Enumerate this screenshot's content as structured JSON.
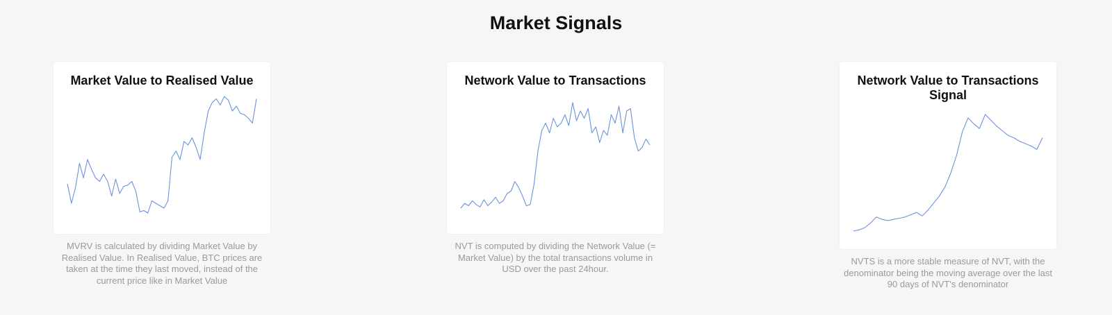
{
  "page": {
    "title": "Market Signals"
  },
  "cards": [
    {
      "title": "Market Value to Realised Value",
      "description": "MVRV is calculated by dividing Market Value by Realised Value. In Realised Value, BTC prices are taken at the time they last moved, instead of the current price like in Market Value"
    },
    {
      "title": "Network Value to Transactions",
      "description": "NVT is computed by dividing the Network Value (= Market Value) by the total transactions volume in USD over the past 24hour."
    },
    {
      "title": "Network Value to Transactions Signal",
      "description": "NVTS is a more stable measure of NVT, with the denominator being the moving average over the last 90 days of NVT's denominator"
    }
  ],
  "colors": {
    "line": "#6b93db",
    "background": "#f7f6f4",
    "card": "#ffffff"
  },
  "chart_data": [
    {
      "type": "line",
      "title": "Market Value to Realised Value",
      "axes_visible": false,
      "grid": false,
      "y": [
        0.28,
        0.12,
        0.25,
        0.45,
        0.33,
        0.48,
        0.4,
        0.33,
        0.3,
        0.36,
        0.3,
        0.18,
        0.32,
        0.2,
        0.26,
        0.27,
        0.3,
        0.22,
        0.05,
        0.06,
        0.04,
        0.14,
        0.12,
        0.1,
        0.08,
        0.14,
        0.5,
        0.55,
        0.48,
        0.63,
        0.6,
        0.66,
        0.58,
        0.48,
        0.7,
        0.88,
        0.95,
        0.98,
        0.93,
        1.0,
        0.97,
        0.88,
        0.92,
        0.86,
        0.85,
        0.82,
        0.78,
        0.98
      ]
    },
    {
      "type": "line",
      "title": "Network Value to Transactions",
      "axes_visible": false,
      "grid": false,
      "y": [
        0.08,
        0.12,
        0.1,
        0.14,
        0.11,
        0.09,
        0.15,
        0.1,
        0.13,
        0.17,
        0.12,
        0.14,
        0.2,
        0.22,
        0.3,
        0.25,
        0.18,
        0.1,
        0.11,
        0.28,
        0.55,
        0.72,
        0.78,
        0.7,
        0.82,
        0.75,
        0.78,
        0.85,
        0.76,
        0.95,
        0.8,
        0.88,
        0.82,
        0.9,
        0.7,
        0.75,
        0.62,
        0.72,
        0.68,
        0.85,
        0.78,
        0.92,
        0.7,
        0.88,
        0.9,
        0.66,
        0.55,
        0.58,
        0.65,
        0.6
      ]
    },
    {
      "type": "line",
      "title": "Network Value to Transactions Signal",
      "axes_visible": false,
      "grid": false,
      "y": [
        0.0,
        0.01,
        0.03,
        0.07,
        0.12,
        0.1,
        0.09,
        0.1,
        0.11,
        0.12,
        0.14,
        0.16,
        0.13,
        0.18,
        0.24,
        0.3,
        0.38,
        0.5,
        0.65,
        0.85,
        0.97,
        0.92,
        0.88,
        1.0,
        0.95,
        0.9,
        0.86,
        0.82,
        0.8,
        0.77,
        0.75,
        0.73,
        0.7,
        0.8
      ]
    }
  ]
}
